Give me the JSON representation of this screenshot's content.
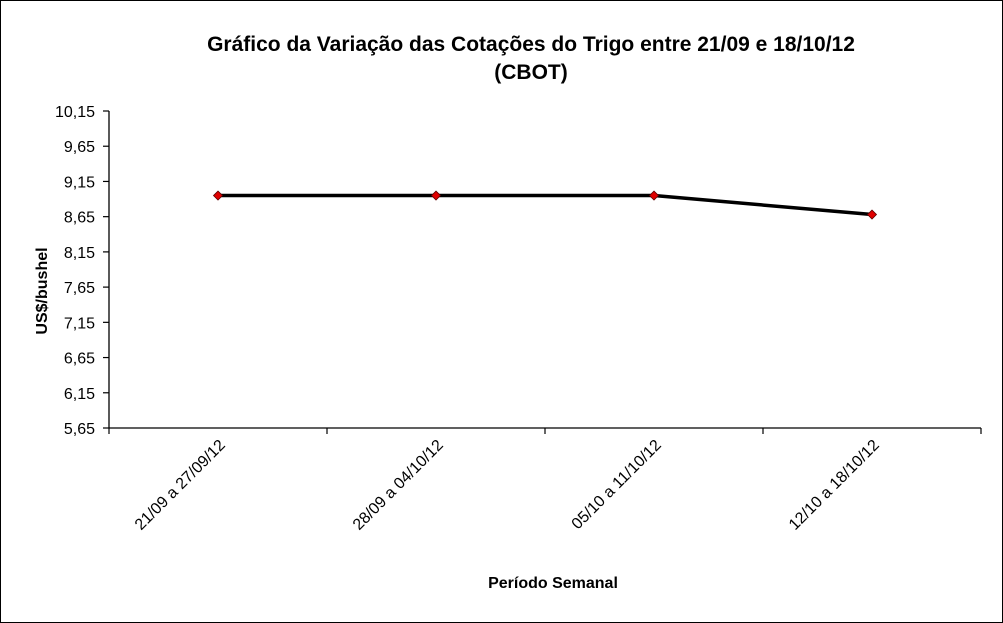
{
  "chart_data": {
    "type": "line",
    "title": [
      "Gráfico da Variação das Cotações do Trigo entre 21/09 e 18/10/12",
      "(CBOT)"
    ],
    "xlabel": "Período Semanal",
    "ylabel": "US$/bushel",
    "categories": [
      "21/09 a 27/09/12",
      "28/09 a 04/10/12",
      "05/10 a 11/10/12",
      "12/10 a 18/10/12"
    ],
    "y_ticks": [
      "5,65",
      "6,15",
      "6,65",
      "7,15",
      "7,65",
      "8,15",
      "8,65",
      "9,15",
      "9,65",
      "10,15"
    ],
    "ylim": [
      5.65,
      10.15
    ],
    "series": [
      {
        "values": [
          8.95,
          8.95,
          8.95,
          8.68
        ]
      }
    ],
    "grid": false,
    "legend": "none",
    "colors": {
      "line": "#000000",
      "marker": "#e00000",
      "axis": "#000000"
    }
  }
}
